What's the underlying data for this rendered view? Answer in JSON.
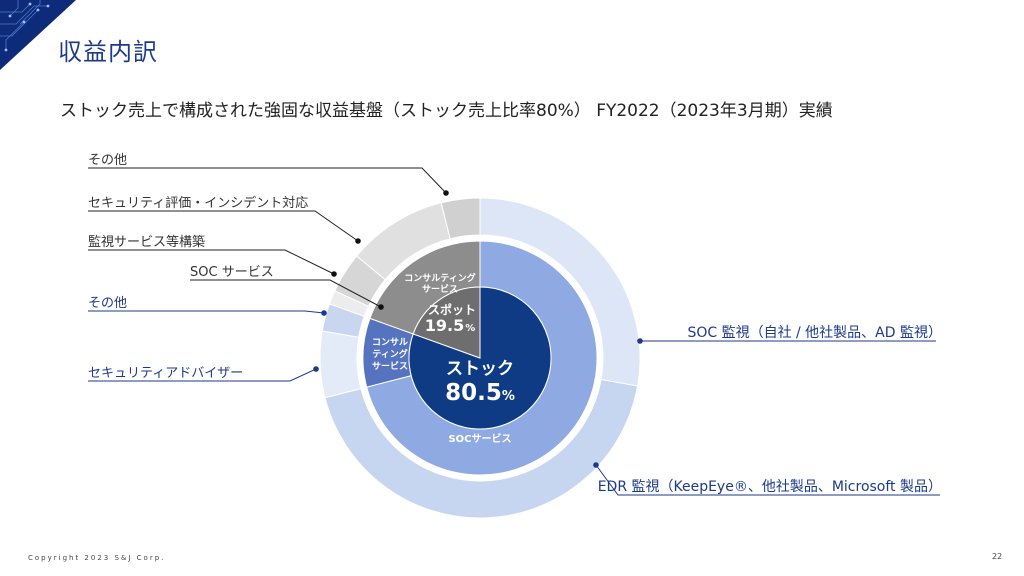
{
  "page": {
    "title": "収益内訳",
    "subtitle": "ストック売上で構成された強固な収益基盤（ストック売上比率80%） FY2022（2023年3月期）実績",
    "footer": "Copyright 2023 S&J Corp.",
    "page_number": "22"
  },
  "chart_data": {
    "type": "pie",
    "subtype": "nested-donut",
    "inner": [
      {
        "name": "ストック",
        "value": 80.5,
        "value_label": "80.5",
        "unit": "%",
        "color": "#0f3b85"
      },
      {
        "name": "スポット",
        "value": 19.5,
        "value_label": "19.5",
        "unit": "%",
        "color": "#6e6e6e"
      }
    ],
    "middle": [
      {
        "name": "SOCサービス",
        "parent": "ストック",
        "value": 71.0,
        "color": "#8fa9e2"
      },
      {
        "name": "コンサルティングサービス",
        "parent": "ストック",
        "value": 9.5,
        "color": "#5573be"
      },
      {
        "name": "コンサルティングサービス",
        "parent": "スポット",
        "value": 19.5,
        "color": "#8d8d8d"
      }
    ],
    "outer": [
      {
        "name": "SOC 監視（自社 / 他社製品、AD 監視）",
        "value": 27.8,
        "color": "#dce6f6",
        "side": "right"
      },
      {
        "name": "EDR 監視（KeepEye®、他社製品、Microsoft 製品）",
        "value": 43.2,
        "color": "#c6d5f0",
        "side": "right"
      },
      {
        "name": "セキュリティアドバイザー",
        "value": 6.7,
        "color": "#e3ebf8",
        "side": "left"
      },
      {
        "name": "その他",
        "value": 2.8,
        "color": "#c9d6f0",
        "side": "left"
      },
      {
        "name": "SOC サービス",
        "value": 1.4,
        "color": "#ececec",
        "side": "left"
      },
      {
        "name": "監視サービス等構築",
        "value": 4.1,
        "color": "#d6d6d6",
        "side": "left"
      },
      {
        "name": "セキュリティ評価・インシデント対応",
        "value": 10.1,
        "color": "#e0e0e0",
        "side": "left"
      },
      {
        "name": "その他",
        "value": 3.9,
        "color": "#d0d0d0",
        "side": "left"
      }
    ]
  }
}
